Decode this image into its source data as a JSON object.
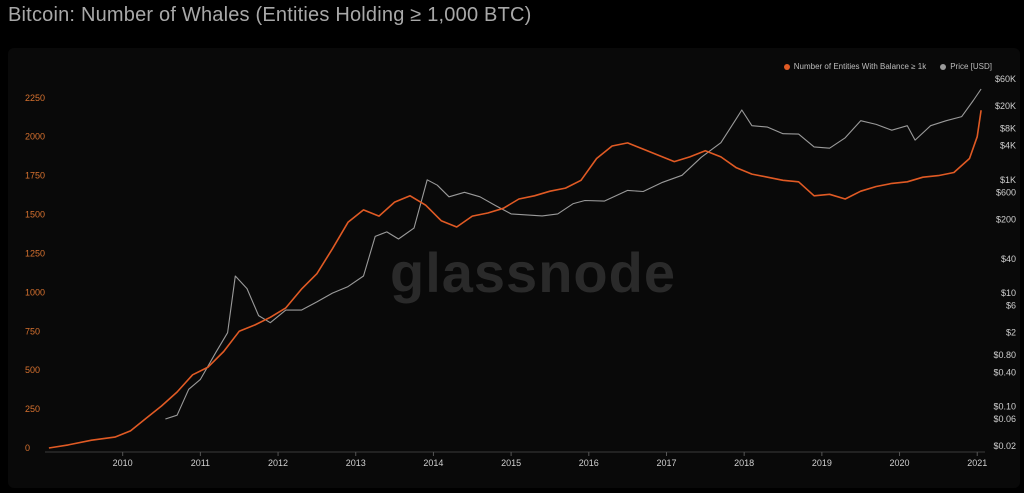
{
  "chart_data": {
    "type": "line",
    "title": "Bitcoin: Number of Whales (Entities Holding ≥ 1,000 BTC)",
    "watermark": "glassnode",
    "legend_position": "top-right",
    "grid": false,
    "x_ticks": [
      "2010",
      "2011",
      "2012",
      "2013",
      "2014",
      "2015",
      "2016",
      "2017",
      "2018",
      "2019",
      "2020",
      "2021"
    ],
    "y_left": {
      "ticks": [
        0,
        250,
        500,
        750,
        1000,
        1250,
        1500,
        1750,
        2000,
        2250
      ],
      "ylim": [
        0,
        2300
      ],
      "color": "#d8722f"
    },
    "y_right": {
      "scale": "log",
      "ticks": [
        {
          "v": 60000,
          "l": "$60K"
        },
        {
          "v": 20000,
          "l": "$20K"
        },
        {
          "v": 8000,
          "l": "$8K"
        },
        {
          "v": 4000,
          "l": "$4K"
        },
        {
          "v": 1000,
          "l": "$1K"
        },
        {
          "v": 600,
          "l": "$600"
        },
        {
          "v": 200,
          "l": "$200"
        },
        {
          "v": 40,
          "l": "$40"
        },
        {
          "v": 10,
          "l": "$10"
        },
        {
          "v": 6,
          "l": "$6"
        },
        {
          "v": 2,
          "l": "$2"
        },
        {
          "v": 0.8,
          "l": "$0.80"
        },
        {
          "v": 0.4,
          "l": "$0.40"
        },
        {
          "v": 0.1,
          "l": "$0.10"
        },
        {
          "v": 0.06,
          "l": "$0.06"
        },
        {
          "v": 0.02,
          "l": "$0.02"
        }
      ]
    },
    "series": [
      {
        "name": "Number of Entities With Balance ≥ 1k",
        "color": "#e05a24",
        "axis": "left",
        "points": [
          [
            2009.05,
            0
          ],
          [
            2009.3,
            20
          ],
          [
            2009.6,
            50
          ],
          [
            2009.9,
            70
          ],
          [
            2010.1,
            110
          ],
          [
            2010.3,
            190
          ],
          [
            2010.5,
            270
          ],
          [
            2010.7,
            360
          ],
          [
            2010.9,
            470
          ],
          [
            2011.1,
            520
          ],
          [
            2011.3,
            620
          ],
          [
            2011.5,
            750
          ],
          [
            2011.7,
            790
          ],
          [
            2011.9,
            840
          ],
          [
            2012.1,
            900
          ],
          [
            2012.3,
            1020
          ],
          [
            2012.5,
            1120
          ],
          [
            2012.7,
            1280
          ],
          [
            2012.9,
            1450
          ],
          [
            2013.1,
            1530
          ],
          [
            2013.3,
            1490
          ],
          [
            2013.5,
            1580
          ],
          [
            2013.7,
            1620
          ],
          [
            2013.9,
            1560
          ],
          [
            2014.1,
            1460
          ],
          [
            2014.3,
            1420
          ],
          [
            2014.5,
            1490
          ],
          [
            2014.7,
            1510
          ],
          [
            2014.9,
            1540
          ],
          [
            2015.1,
            1600
          ],
          [
            2015.3,
            1620
          ],
          [
            2015.5,
            1650
          ],
          [
            2015.7,
            1670
          ],
          [
            2015.9,
            1720
          ],
          [
            2016.1,
            1860
          ],
          [
            2016.3,
            1940
          ],
          [
            2016.5,
            1960
          ],
          [
            2016.7,
            1920
          ],
          [
            2016.9,
            1880
          ],
          [
            2017.1,
            1840
          ],
          [
            2017.3,
            1870
          ],
          [
            2017.5,
            1910
          ],
          [
            2017.7,
            1870
          ],
          [
            2017.9,
            1800
          ],
          [
            2018.1,
            1760
          ],
          [
            2018.3,
            1740
          ],
          [
            2018.5,
            1720
          ],
          [
            2018.7,
            1710
          ],
          [
            2018.9,
            1620
          ],
          [
            2019.1,
            1630
          ],
          [
            2019.3,
            1600
          ],
          [
            2019.5,
            1650
          ],
          [
            2019.7,
            1680
          ],
          [
            2019.9,
            1700
          ],
          [
            2020.1,
            1710
          ],
          [
            2020.3,
            1740
          ],
          [
            2020.5,
            1750
          ],
          [
            2020.7,
            1770
          ],
          [
            2020.9,
            1860
          ],
          [
            2021.0,
            2000
          ],
          [
            2021.05,
            2170
          ]
        ]
      },
      {
        "name": "Price [USD]",
        "color": "#9a9a9a",
        "axis": "right",
        "points": [
          [
            2010.55,
            0.06
          ],
          [
            2010.7,
            0.07
          ],
          [
            2010.85,
            0.2
          ],
          [
            2011.0,
            0.3
          ],
          [
            2011.2,
            0.9
          ],
          [
            2011.35,
            2
          ],
          [
            2011.45,
            20
          ],
          [
            2011.6,
            12
          ],
          [
            2011.75,
            4
          ],
          [
            2011.9,
            3
          ],
          [
            2012.1,
            5
          ],
          [
            2012.3,
            5
          ],
          [
            2012.5,
            7
          ],
          [
            2012.7,
            10
          ],
          [
            2012.9,
            13
          ],
          [
            2013.1,
            20
          ],
          [
            2013.25,
            100
          ],
          [
            2013.4,
            120
          ],
          [
            2013.55,
            90
          ],
          [
            2013.75,
            140
          ],
          [
            2013.92,
            1000
          ],
          [
            2014.05,
            800
          ],
          [
            2014.2,
            500
          ],
          [
            2014.4,
            600
          ],
          [
            2014.6,
            500
          ],
          [
            2014.8,
            350
          ],
          [
            2015.0,
            250
          ],
          [
            2015.2,
            240
          ],
          [
            2015.4,
            230
          ],
          [
            2015.6,
            250
          ],
          [
            2015.8,
            380
          ],
          [
            2015.95,
            430
          ],
          [
            2016.2,
            420
          ],
          [
            2016.5,
            650
          ],
          [
            2016.7,
            620
          ],
          [
            2016.95,
            900
          ],
          [
            2017.2,
            1200
          ],
          [
            2017.45,
            2500
          ],
          [
            2017.7,
            4500
          ],
          [
            2017.9,
            12000
          ],
          [
            2017.97,
            17000
          ],
          [
            2018.1,
            9000
          ],
          [
            2018.3,
            8500
          ],
          [
            2018.5,
            6500
          ],
          [
            2018.7,
            6400
          ],
          [
            2018.9,
            3800
          ],
          [
            2019.1,
            3600
          ],
          [
            2019.3,
            5500
          ],
          [
            2019.5,
            11000
          ],
          [
            2019.7,
            9500
          ],
          [
            2019.9,
            7500
          ],
          [
            2020.1,
            9000
          ],
          [
            2020.2,
            5000
          ],
          [
            2020.4,
            9000
          ],
          [
            2020.6,
            11000
          ],
          [
            2020.8,
            13000
          ],
          [
            2020.95,
            25000
          ],
          [
            2021.05,
            40000
          ]
        ]
      }
    ]
  }
}
